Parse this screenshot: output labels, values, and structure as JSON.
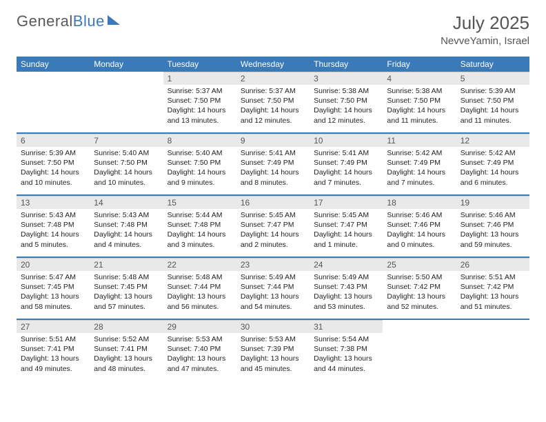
{
  "logo": {
    "part1": "General",
    "part2": "Blue"
  },
  "title": "July 2025",
  "location": "NevveYamin, Israel",
  "colors": {
    "accent": "#3a7ab8",
    "daynum_bg": "#e9e9e9",
    "text": "#555555",
    "body_bg": "#ffffff"
  },
  "day_headers": [
    "Sunday",
    "Monday",
    "Tuesday",
    "Wednesday",
    "Thursday",
    "Friday",
    "Saturday"
  ],
  "weeks": [
    [
      null,
      null,
      {
        "n": "1",
        "sr": "5:37 AM",
        "ss": "7:50 PM",
        "dl": "14 hours and 13 minutes."
      },
      {
        "n": "2",
        "sr": "5:37 AM",
        "ss": "7:50 PM",
        "dl": "14 hours and 12 minutes."
      },
      {
        "n": "3",
        "sr": "5:38 AM",
        "ss": "7:50 PM",
        "dl": "14 hours and 12 minutes."
      },
      {
        "n": "4",
        "sr": "5:38 AM",
        "ss": "7:50 PM",
        "dl": "14 hours and 11 minutes."
      },
      {
        "n": "5",
        "sr": "5:39 AM",
        "ss": "7:50 PM",
        "dl": "14 hours and 11 minutes."
      }
    ],
    [
      {
        "n": "6",
        "sr": "5:39 AM",
        "ss": "7:50 PM",
        "dl": "14 hours and 10 minutes."
      },
      {
        "n": "7",
        "sr": "5:40 AM",
        "ss": "7:50 PM",
        "dl": "14 hours and 10 minutes."
      },
      {
        "n": "8",
        "sr": "5:40 AM",
        "ss": "7:50 PM",
        "dl": "14 hours and 9 minutes."
      },
      {
        "n": "9",
        "sr": "5:41 AM",
        "ss": "7:49 PM",
        "dl": "14 hours and 8 minutes."
      },
      {
        "n": "10",
        "sr": "5:41 AM",
        "ss": "7:49 PM",
        "dl": "14 hours and 7 minutes."
      },
      {
        "n": "11",
        "sr": "5:42 AM",
        "ss": "7:49 PM",
        "dl": "14 hours and 7 minutes."
      },
      {
        "n": "12",
        "sr": "5:42 AM",
        "ss": "7:49 PM",
        "dl": "14 hours and 6 minutes."
      }
    ],
    [
      {
        "n": "13",
        "sr": "5:43 AM",
        "ss": "7:48 PM",
        "dl": "14 hours and 5 minutes."
      },
      {
        "n": "14",
        "sr": "5:43 AM",
        "ss": "7:48 PM",
        "dl": "14 hours and 4 minutes."
      },
      {
        "n": "15",
        "sr": "5:44 AM",
        "ss": "7:48 PM",
        "dl": "14 hours and 3 minutes."
      },
      {
        "n": "16",
        "sr": "5:45 AM",
        "ss": "7:47 PM",
        "dl": "14 hours and 2 minutes."
      },
      {
        "n": "17",
        "sr": "5:45 AM",
        "ss": "7:47 PM",
        "dl": "14 hours and 1 minute."
      },
      {
        "n": "18",
        "sr": "5:46 AM",
        "ss": "7:46 PM",
        "dl": "14 hours and 0 minutes."
      },
      {
        "n": "19",
        "sr": "5:46 AM",
        "ss": "7:46 PM",
        "dl": "13 hours and 59 minutes."
      }
    ],
    [
      {
        "n": "20",
        "sr": "5:47 AM",
        "ss": "7:45 PM",
        "dl": "13 hours and 58 minutes."
      },
      {
        "n": "21",
        "sr": "5:48 AM",
        "ss": "7:45 PM",
        "dl": "13 hours and 57 minutes."
      },
      {
        "n": "22",
        "sr": "5:48 AM",
        "ss": "7:44 PM",
        "dl": "13 hours and 56 minutes."
      },
      {
        "n": "23",
        "sr": "5:49 AM",
        "ss": "7:44 PM",
        "dl": "13 hours and 54 minutes."
      },
      {
        "n": "24",
        "sr": "5:49 AM",
        "ss": "7:43 PM",
        "dl": "13 hours and 53 minutes."
      },
      {
        "n": "25",
        "sr": "5:50 AM",
        "ss": "7:42 PM",
        "dl": "13 hours and 52 minutes."
      },
      {
        "n": "26",
        "sr": "5:51 AM",
        "ss": "7:42 PM",
        "dl": "13 hours and 51 minutes."
      }
    ],
    [
      {
        "n": "27",
        "sr": "5:51 AM",
        "ss": "7:41 PM",
        "dl": "13 hours and 49 minutes."
      },
      {
        "n": "28",
        "sr": "5:52 AM",
        "ss": "7:41 PM",
        "dl": "13 hours and 48 minutes."
      },
      {
        "n": "29",
        "sr": "5:53 AM",
        "ss": "7:40 PM",
        "dl": "13 hours and 47 minutes."
      },
      {
        "n": "30",
        "sr": "5:53 AM",
        "ss": "7:39 PM",
        "dl": "13 hours and 45 minutes."
      },
      {
        "n": "31",
        "sr": "5:54 AM",
        "ss": "7:38 PM",
        "dl": "13 hours and 44 minutes."
      },
      null,
      null
    ]
  ],
  "labels": {
    "sunrise": "Sunrise:",
    "sunset": "Sunset:",
    "daylight": "Daylight:"
  }
}
